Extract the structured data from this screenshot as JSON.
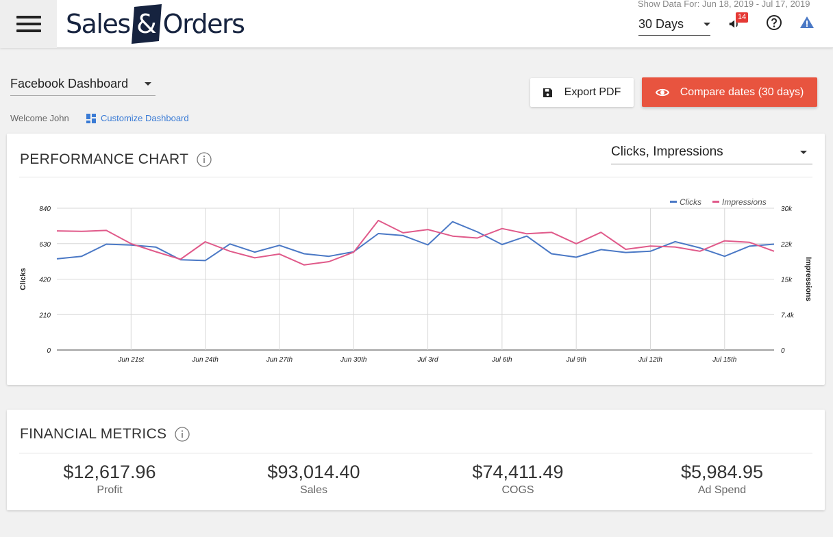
{
  "header": {
    "logo_left": "Sales",
    "logo_amp": "&",
    "logo_right": "Orders",
    "range_text": "Show Data For: Jun 18, 2019 - Jul 17, 2019",
    "days_select": "30 Days",
    "notification_count": "14"
  },
  "toolbar": {
    "dashboard_select": "Facebook Dashboard",
    "welcome": "Welcome John",
    "customize": "Customize Dashboard",
    "export_label": "Export PDF",
    "compare_label": "Compare dates (30 days)"
  },
  "colors": {
    "accent": "#e8543f",
    "link": "#3a7bd5",
    "clicks": "#4a78c5",
    "impressions": "#e05a8a",
    "logo": "#16233f"
  },
  "performance": {
    "title": "PERFORMANCE CHART",
    "metric_select": "Clicks, Impressions"
  },
  "chart_data": {
    "type": "line",
    "xlabel": "",
    "ylabel": "Clicks",
    "y2label": "Impressions",
    "ylim": [
      0,
      840
    ],
    "y2lim": [
      0,
      30000
    ],
    "yticks": [
      "0",
      "210",
      "420",
      "630",
      "840"
    ],
    "y2ticks": [
      "0",
      "7.4k",
      "15k",
      "22k",
      "30k"
    ],
    "xticks": [
      "Jun 21st",
      "Jun 24th",
      "Jun 27th",
      "Jun 30th",
      "Jul 3rd",
      "Jul 6th",
      "Jul 9th",
      "Jul 12th",
      "Jul 15th"
    ],
    "x": [
      "2019-06-18",
      "2019-06-19",
      "2019-06-20",
      "2019-06-21",
      "2019-06-22",
      "2019-06-23",
      "2019-06-24",
      "2019-06-25",
      "2019-06-26",
      "2019-06-27",
      "2019-06-28",
      "2019-06-29",
      "2019-06-30",
      "2019-07-01",
      "2019-07-02",
      "2019-07-03",
      "2019-07-04",
      "2019-07-05",
      "2019-07-06",
      "2019-07-07",
      "2019-07-08",
      "2019-07-09",
      "2019-07-10",
      "2019-07-11",
      "2019-07-12",
      "2019-07-13",
      "2019-07-14",
      "2019-07-15",
      "2019-07-16",
      "2019-07-17"
    ],
    "legend_position": "top-right",
    "grid": true,
    "series": [
      {
        "name": "Clicks",
        "axis": "left",
        "color": "#4a78c5",
        "values": [
          540,
          555,
          627,
          622,
          610,
          535,
          530,
          628,
          580,
          620,
          570,
          555,
          582,
          690,
          678,
          623,
          760,
          700,
          625,
          675,
          570,
          550,
          595,
          578,
          585,
          642,
          605,
          555,
          615,
          627
        ]
      },
      {
        "name": "Impressions",
        "axis": "right",
        "color": "#e05a8a",
        "values": [
          25200,
          25100,
          25300,
          22500,
          20800,
          19200,
          22900,
          20900,
          19500,
          20300,
          18000,
          18700,
          20700,
          27400,
          24800,
          25500,
          24100,
          23700,
          25700,
          24600,
          24900,
          22500,
          24900,
          21300,
          22000,
          21800,
          20900,
          23100,
          22800,
          20900
        ]
      }
    ]
  },
  "financial": {
    "title": "FINANCIAL METRICS",
    "metrics": [
      {
        "value": "$12,617.96",
        "label": "Profit"
      },
      {
        "value": "$93,014.40",
        "label": "Sales"
      },
      {
        "value": "$74,411.49",
        "label": "COGS"
      },
      {
        "value": "$5,984.95",
        "label": "Ad Spend"
      }
    ]
  }
}
